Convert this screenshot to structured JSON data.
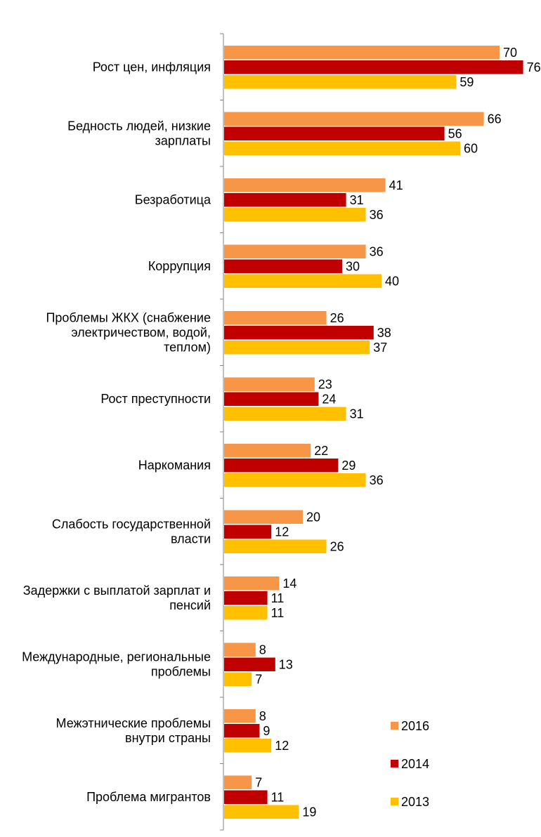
{
  "chart_data": {
    "type": "bar",
    "orientation": "horizontal",
    "title": "",
    "xlabel": "",
    "ylabel": "",
    "xlim": [
      0,
      76
    ],
    "grid": false,
    "legend_position": "bottom-right",
    "categories": [
      "Рост цен, инфляция",
      "Бедность людей, низкие зарплаты",
      "Безработица",
      "Коррупция",
      "Проблемы ЖКХ (снабжение электричеством, водой, теплом)",
      "Рост преступности",
      "Наркомания",
      "Слабость государственной власти",
      "Задержки с выплатой зарплат и пенсий",
      "Международные, региональные проблемы",
      "Межэтнические проблемы внутри страны",
      "Проблема мигрантов"
    ],
    "category_lines": [
      [
        "Рост цен, инфляция"
      ],
      [
        "Бедность людей, низкие",
        "зарплаты"
      ],
      [
        "Безработица"
      ],
      [
        "Коррупция"
      ],
      [
        "Проблемы ЖКХ (снабжение",
        "электричеством, водой,",
        "теплом)"
      ],
      [
        "Рост преступности"
      ],
      [
        "Наркомания"
      ],
      [
        "Слабость государственной",
        "власти"
      ],
      [
        "Задержки с выплатой зарплат и",
        "пенсий"
      ],
      [
        "Международные, региональные",
        "проблемы"
      ],
      [
        "Межэтнические проблемы",
        "внутри страны"
      ],
      [
        "Проблема мигрантов"
      ]
    ],
    "series": [
      {
        "name": "2016",
        "color": "#F79646",
        "values": [
          70,
          66,
          41,
          36,
          26,
          23,
          22,
          20,
          14,
          8,
          8,
          7
        ]
      },
      {
        "name": "2014",
        "color": "#C00000",
        "values": [
          76,
          56,
          31,
          30,
          38,
          24,
          29,
          12,
          11,
          13,
          9,
          11
        ]
      },
      {
        "name": "2013",
        "color": "#FFC000",
        "values": [
          59,
          60,
          36,
          40,
          37,
          31,
          36,
          26,
          11,
          7,
          12,
          19
        ]
      }
    ]
  }
}
